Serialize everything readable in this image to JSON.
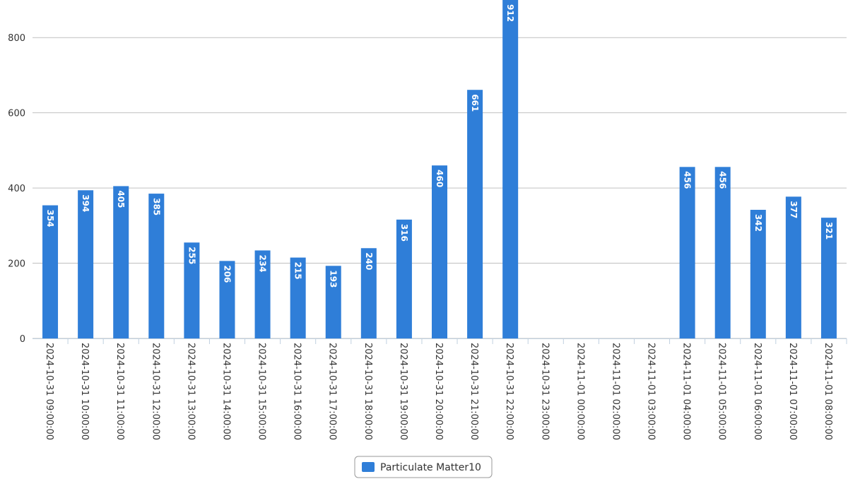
{
  "chart_data": {
    "type": "bar",
    "categories": [
      "2024-10-31 09:00:00",
      "2024-10-31 10:00:00",
      "2024-10-31 11:00:00",
      "2024-10-31 12:00:00",
      "2024-10-31 13:00:00",
      "2024-10-31 14:00:00",
      "2024-10-31 15:00:00",
      "2024-10-31 16:00:00",
      "2024-10-31 17:00:00",
      "2024-10-31 18:00:00",
      "2024-10-31 19:00:00",
      "2024-10-31 20:00:00",
      "2024-10-31 21:00:00",
      "2024-10-31 22:00:00",
      "2024-10-31 23:00:00",
      "2024-11-01 00:00:00",
      "2024-11-01 02:00:00",
      "2024-11-01 03:00:00",
      "2024-11-01 04:00:00",
      "2024-11-01 05:00:00",
      "2024-11-01 06:00:00",
      "2024-11-01 07:00:00",
      "2024-11-01 08:00:00"
    ],
    "series": [
      {
        "name": "Particulate Matter10",
        "color": "#2f7ed8",
        "values": [
          354,
          394,
          405,
          385,
          255,
          206,
          234,
          215,
          193,
          240,
          316,
          460,
          661,
          912,
          null,
          null,
          null,
          null,
          456,
          456,
          342,
          377,
          321
        ]
      }
    ],
    "ylim": [
      0,
      900
    ],
    "yticks": [
      0,
      200,
      400,
      600,
      800
    ],
    "grid": true,
    "legend": "bottom"
  }
}
